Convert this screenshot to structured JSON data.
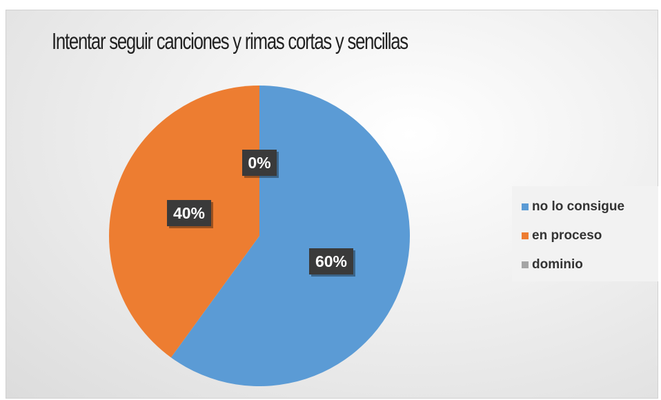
{
  "chart_data": {
    "type": "pie",
    "title": "Intentar seguir canciones y rimas cortas y sencillas",
    "legend_position": "right",
    "series": [
      {
        "name": "no lo consigue",
        "value": 60,
        "label": "60%",
        "color": "#5B9BD5"
      },
      {
        "name": "en proceso",
        "value": 40,
        "label": "40%",
        "color": "#ED7D31"
      },
      {
        "name": "dominio",
        "value": 0,
        "label": "0%",
        "color": "#A5A5A5"
      }
    ],
    "data_label_style": {
      "background": "#3a3a3a",
      "text_color": "#ffffff"
    }
  }
}
